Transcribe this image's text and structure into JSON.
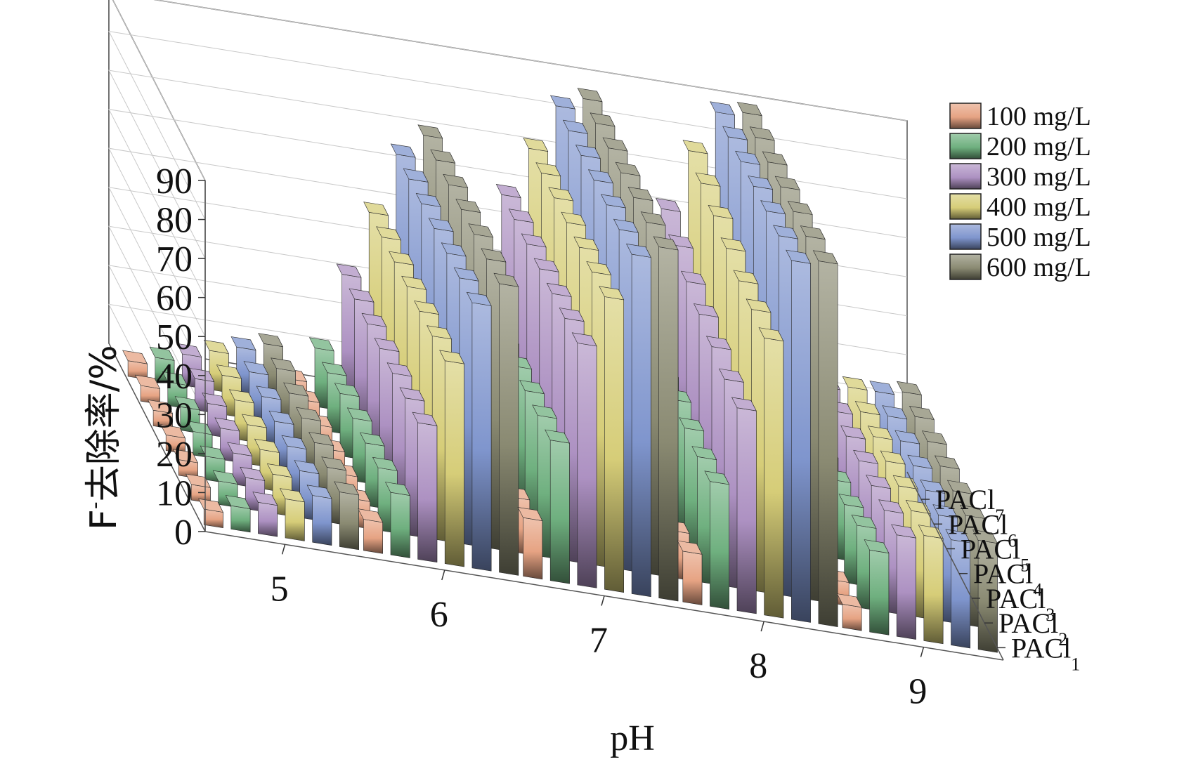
{
  "chart_data": {
    "type": "bar3d",
    "title": "",
    "xlabel": "pH",
    "ylabel_main": "F",
    "ylabel_sup": "-",
    "ylabel_rest": "去除率/%",
    "ylim": [
      0,
      90
    ],
    "y_ticks": [
      "0",
      "10",
      "20",
      "30",
      "40",
      "50",
      "60",
      "70",
      "80",
      "90"
    ],
    "categories": [
      "5",
      "6",
      "7",
      "8",
      "9"
    ],
    "depth_categories": [
      {
        "base": "PACl",
        "sub": "1"
      },
      {
        "base": "PACl",
        "sub": "2"
      },
      {
        "base": "PACl",
        "sub": "3"
      },
      {
        "base": "PACl",
        "sub": "4"
      },
      {
        "base": "PACl",
        "sub": "5"
      },
      {
        "base": "PACl",
        "sub": "6"
      },
      {
        "base": "PACl",
        "sub": "7"
      }
    ],
    "series": [
      {
        "name": "100 mg/L",
        "color": "#e6a383",
        "values": [
          [
            4,
            4,
            4,
            4,
            4,
            4,
            4
          ],
          [
            8,
            7,
            7,
            7,
            7,
            7,
            6
          ],
          [
            15,
            14,
            13,
            12,
            11,
            10,
            9
          ],
          [
            13,
            12,
            12,
            12,
            11,
            11,
            11
          ],
          [
            6,
            6,
            6,
            6,
            6,
            6,
            6
          ]
        ]
      },
      {
        "name": "200 mg/L",
        "color": "#6fb07f",
        "values": [
          [
            6,
            6,
            6,
            6,
            6,
            6,
            6
          ],
          [
            16,
            16,
            16,
            16,
            16,
            15,
            15
          ],
          [
            36,
            36,
            36,
            36,
            36,
            36,
            36
          ],
          [
            32,
            32,
            33,
            34,
            34,
            35,
            38
          ],
          [
            21,
            21,
            20,
            20,
            20,
            20,
            20
          ]
        ]
      },
      {
        "name": "300 mg/L",
        "color": "#ad91c2",
        "values": [
          [
            8,
            8,
            8,
            8,
            8,
            8,
            8
          ],
          [
            35,
            35,
            35,
            35,
            35,
            35,
            35
          ],
          [
            62,
            62,
            62,
            62,
            62,
            62,
            62
          ],
          [
            52,
            53,
            55,
            57,
            59,
            62,
            65
          ],
          [
            26,
            26,
            26,
            26,
            26,
            26,
            26
          ]
        ]
      },
      {
        "name": "400 mg/L",
        "color": "#d6cd78",
        "values": [
          [
            10,
            10,
            10,
            10,
            10,
            10,
            10
          ],
          [
            52,
            52,
            52,
            52,
            52,
            52,
            52
          ],
          [
            75,
            75,
            75,
            75,
            75,
            75,
            75
          ],
          [
            71,
            72,
            73,
            75,
            77,
            79,
            81
          ],
          [
            27,
            27,
            27,
            27,
            27,
            27,
            27
          ]
        ]
      },
      {
        "name": "500 mg/L",
        "color": "#7f95cd",
        "values": [
          [
            12,
            12,
            12,
            12,
            12,
            12,
            12
          ],
          [
            68,
            68,
            68,
            68,
            68,
            68,
            68
          ],
          [
            87,
            87,
            87,
            87,
            87,
            87,
            87
          ],
          [
            92,
            92,
            92,
            92,
            92,
            92,
            92
          ],
          [
            27,
            27,
            27,
            27,
            27,
            27,
            27
          ]
        ]
      },
      {
        "name": "600 mg/L",
        "color": "#8a8a72",
        "values": [
          [
            14,
            14,
            14,
            14,
            14,
            14,
            14
          ],
          [
            74,
            74,
            74,
            74,
            74,
            74,
            74
          ],
          [
            90,
            90,
            90,
            90,
            90,
            90,
            90
          ],
          [
            93,
            93,
            93,
            93,
            93,
            93,
            93
          ],
          [
            28,
            28,
            28,
            28,
            28,
            28,
            28
          ]
        ]
      }
    ],
    "legend_position": "top-right",
    "grid": true
  }
}
